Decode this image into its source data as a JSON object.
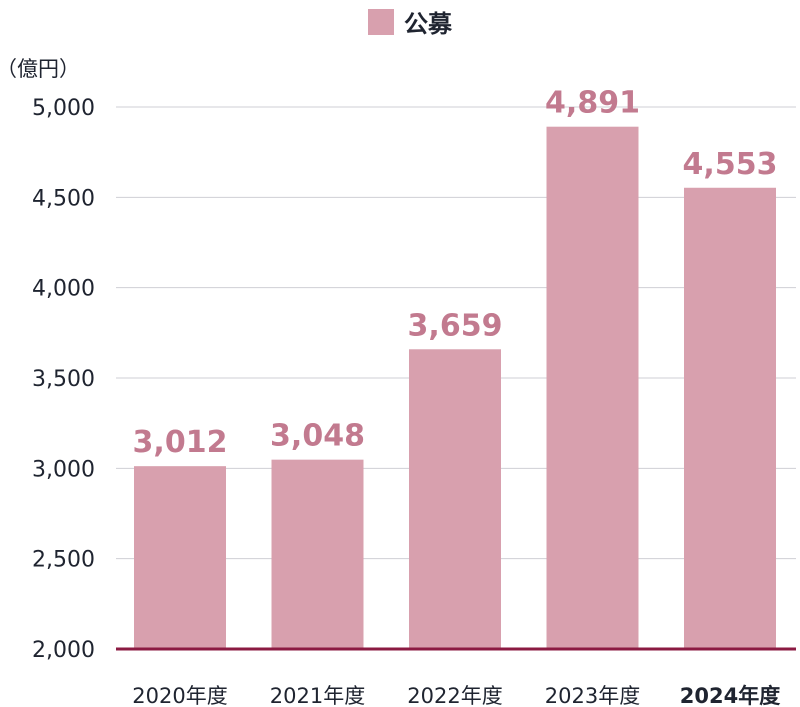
{
  "chart_data": {
    "type": "bar",
    "categories": [
      "2020年度",
      "2021年度",
      "2022年度",
      "2023年度",
      "2024年度"
    ],
    "series": [
      {
        "name": "公募",
        "values": [
          3012,
          3048,
          3659,
          4891,
          4553
        ]
      }
    ],
    "data_labels": [
      "3,012",
      "3,048",
      "3,659",
      "4,891",
      "4,553"
    ],
    "unit_label": "（億円）",
    "ylim": [
      2000,
      5000
    ],
    "yticks": [
      2000,
      2500,
      3000,
      3500,
      4000,
      4500,
      5000
    ],
    "ytick_labels": [
      "2,000",
      "2,500",
      "3,000",
      "3,500",
      "4,000",
      "4,500",
      "5,000"
    ],
    "grid": true,
    "legend_position": "top-center",
    "highlight_category_index": 4,
    "colors": {
      "bar": "#d8a0ae",
      "data_label": "#c27a8f",
      "baseline": "#8b1a42",
      "grid": "#cfcfd4",
      "text": "#1f2430"
    }
  }
}
